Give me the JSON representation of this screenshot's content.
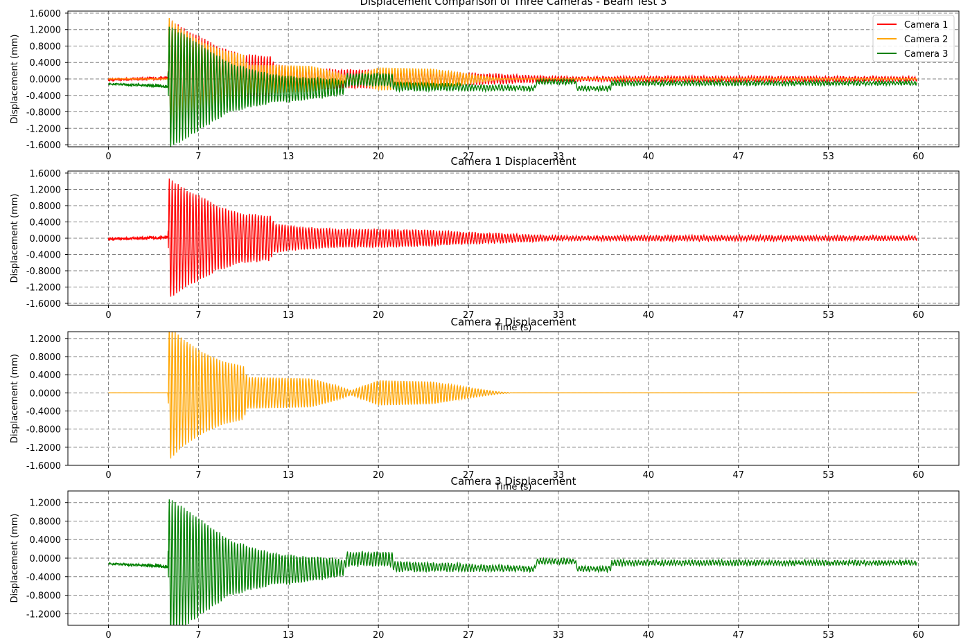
{
  "chart_data": [
    {
      "type": "line",
      "title": "Displacement Comparison of Three Cameras - Beam Test 3",
      "xlabel": "",
      "ylabel": "Displacement (mm)",
      "xlim": [
        -3,
        63
      ],
      "ylim": [
        -1.65,
        1.65
      ],
      "xticks": [
        0,
        6.67,
        13.33,
        20,
        26.67,
        33.33,
        40,
        46.67,
        53.33,
        60
      ],
      "xtick_labels": [
        "0",
        "7",
        "13",
        "20",
        "27",
        "33",
        "40",
        "47",
        "53",
        "60"
      ],
      "yticks": [
        -1.6,
        -1.2,
        -0.8,
        -0.4,
        0,
        0.4,
        0.8,
        1.2,
        1.6
      ],
      "ytick_labels": [
        "-1.6000",
        "-1.2000",
        "-0.8000",
        "-0.4000",
        "0.0000",
        "0.4000",
        "0.8000",
        "1.2000",
        "1.6000"
      ],
      "grid": true,
      "legend": "top-right",
      "series": [
        {
          "name": "Camera 1",
          "color": "#ff0000",
          "profile": "cam1"
        },
        {
          "name": "Camera 2",
          "color": "#ffa500",
          "profile": "cam2"
        },
        {
          "name": "Camera 3",
          "color": "#008000",
          "profile": "cam3"
        }
      ]
    },
    {
      "type": "line",
      "title": "Camera 1 Displacement",
      "xlabel": "",
      "ylabel": "Displacement (mm)",
      "xlim": [
        -3,
        63
      ],
      "ylim": [
        -1.65,
        1.65
      ],
      "xticks": [
        0,
        6.67,
        13.33,
        20,
        26.67,
        33.33,
        40,
        46.67,
        53.33,
        60
      ],
      "xtick_labels": [
        "0",
        "7",
        "13",
        "20",
        "27",
        "33",
        "40",
        "47",
        "53",
        "60"
      ],
      "yticks": [
        -1.6,
        -1.2,
        -0.8,
        -0.4,
        0,
        0.4,
        0.8,
        1.2,
        1.6
      ],
      "ytick_labels": [
        "-1.6000",
        "-1.2000",
        "-0.8000",
        "-0.4000",
        "0.0000",
        "0.4000",
        "0.8000",
        "1.2000",
        "1.6000"
      ],
      "grid": true,
      "series": [
        {
          "color": "#ff0000",
          "profile": "cam1"
        }
      ]
    },
    {
      "type": "line",
      "title": "Camera 2 Displacement",
      "xlabel": "Time (s)",
      "ylabel": "Displacement (mm)",
      "xlim": [
        -3,
        63
      ],
      "ylim": [
        -1.6,
        1.35
      ],
      "xticks": [
        0,
        6.67,
        13.33,
        20,
        26.67,
        33.33,
        40,
        46.67,
        53.33,
        60
      ],
      "xtick_labels": [
        "0",
        "7",
        "13",
        "20",
        "27",
        "33",
        "40",
        "47",
        "53",
        "60"
      ],
      "yticks": [
        -1.6,
        -1.2,
        -0.8,
        -0.4,
        0,
        0.4,
        0.8,
        1.2
      ],
      "ytick_labels": [
        "-1.6000",
        "-1.2000",
        "-0.8000",
        "-0.4000",
        "0.0000",
        "0.4000",
        "0.8000",
        "1.2000"
      ],
      "grid": true,
      "series": [
        {
          "color": "#ffa500",
          "profile": "cam2"
        }
      ]
    },
    {
      "type": "line",
      "title": "Camera 3 Displacement",
      "xlabel": "Time (s)",
      "ylabel": "Displacement (mm)",
      "xlim": [
        -3,
        63
      ],
      "ylim": [
        -1.45,
        1.45
      ],
      "xticks": [
        0,
        6.67,
        13.33,
        20,
        26.67,
        33.33,
        40,
        46.67,
        53.33,
        60
      ],
      "xtick_labels": [
        "0",
        "7",
        "13",
        "20",
        "27",
        "33",
        "40",
        "47",
        "53",
        "60"
      ],
      "yticks": [
        -1.2,
        -0.8,
        -0.4,
        0,
        0.4,
        0.8,
        1.2
      ],
      "ytick_labels": [
        "-1.2000",
        "-0.8000",
        "-0.4000",
        "0.0000",
        "0.4000",
        "0.8000",
        "1.2000"
      ],
      "grid": true,
      "series": [
        {
          "color": "#008000",
          "profile": "cam3"
        }
      ]
    }
  ],
  "profiles": {
    "cam1": {
      "baseline": [
        [
          0,
          -0.02
        ],
        [
          4.4,
          0.02
        ],
        [
          4.5,
          0.0
        ],
        [
          60,
          0.0
        ]
      ],
      "envelope": [
        [
          0,
          0.03
        ],
        [
          4.4,
          0.04
        ],
        [
          4.5,
          1.48
        ],
        [
          6,
          1.15
        ],
        [
          7,
          1.0
        ],
        [
          8,
          0.8
        ],
        [
          10,
          0.6
        ],
        [
          12,
          0.55
        ],
        [
          12.3,
          0.35
        ],
        [
          14,
          0.28
        ],
        [
          17,
          0.22
        ],
        [
          20,
          0.22
        ],
        [
          23,
          0.2
        ],
        [
          26,
          0.15
        ],
        [
          30,
          0.1
        ],
        [
          33,
          0.05
        ],
        [
          37,
          0.05
        ],
        [
          40,
          0.06
        ],
        [
          60,
          0.05
        ]
      ],
      "noise": 0.04
    },
    "cam2": {
      "baseline": [
        [
          0,
          0.0
        ],
        [
          60,
          0.0
        ]
      ],
      "envelope": [
        [
          0,
          0.0
        ],
        [
          4.4,
          0.0
        ],
        [
          4.5,
          1.5
        ],
        [
          5.5,
          1.2
        ],
        [
          7,
          0.9
        ],
        [
          8.5,
          0.7
        ],
        [
          10,
          0.6
        ],
        [
          10.3,
          0.35
        ],
        [
          15,
          0.32
        ],
        [
          16.5,
          0.2
        ],
        [
          18,
          0.05
        ],
        [
          20,
          0.28
        ],
        [
          24,
          0.25
        ],
        [
          27,
          0.1
        ],
        [
          29,
          0.02
        ],
        [
          30,
          0.0
        ],
        [
          60,
          0.0
        ]
      ],
      "noise": 0.0
    },
    "cam3": {
      "baseline": [
        [
          0,
          -0.12
        ],
        [
          4.4,
          -0.18
        ],
        [
          4.5,
          -0.2
        ],
        [
          8,
          -0.2
        ],
        [
          14,
          -0.25
        ],
        [
          17.5,
          -0.2
        ],
        [
          17.6,
          -0.02
        ],
        [
          21,
          -0.02
        ],
        [
          21.2,
          -0.18
        ],
        [
          31.6,
          -0.23
        ],
        [
          31.7,
          -0.07
        ],
        [
          34.6,
          -0.07
        ],
        [
          34.7,
          -0.23
        ],
        [
          37.2,
          -0.23
        ],
        [
          37.3,
          -0.1
        ],
        [
          60,
          -0.1
        ]
      ],
      "envelope": [
        [
          0,
          0.02
        ],
        [
          4.4,
          0.04
        ],
        [
          4.5,
          1.5
        ],
        [
          6,
          1.2
        ],
        [
          7,
          1.0
        ],
        [
          9,
          0.6
        ],
        [
          12,
          0.35
        ],
        [
          17,
          0.2
        ],
        [
          17.6,
          0.15
        ],
        [
          21,
          0.15
        ],
        [
          21.2,
          0.1
        ],
        [
          25,
          0.08
        ],
        [
          30,
          0.05
        ],
        [
          60,
          0.04
        ]
      ],
      "noise": 0.05
    }
  }
}
